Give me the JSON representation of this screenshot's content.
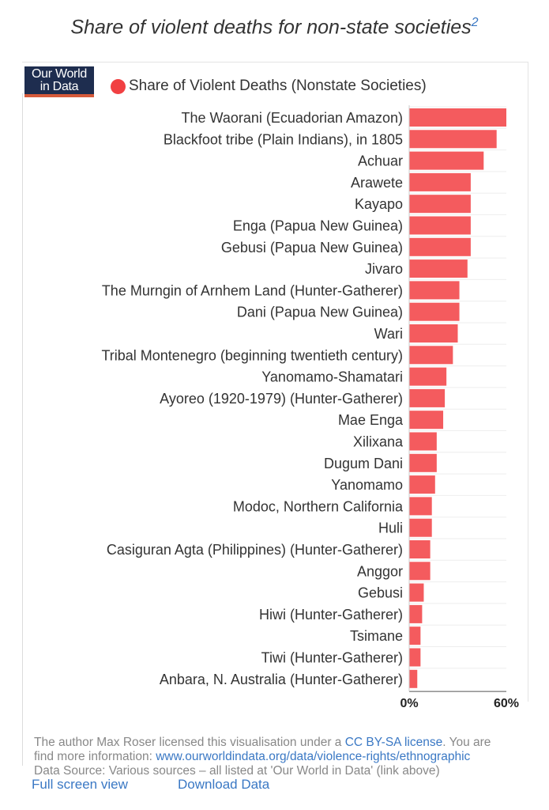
{
  "header": {
    "title": "Share of violent deaths for non-state societies",
    "footnote_ref": "2"
  },
  "logo": {
    "line1": "Our World",
    "line2": "in Data"
  },
  "colors": {
    "bar": "#f45b5e",
    "legend_dot": "#f14042",
    "link": "#3a78c4",
    "logo_bg": "#1e2d4f",
    "logo_accent": "#d65a3a"
  },
  "chart_data": {
    "type": "bar",
    "orientation": "horizontal",
    "series": [
      {
        "name": "Share of Violent Deaths (Nonstate Societies)",
        "values": [
          60,
          54,
          46,
          38,
          38,
          38,
          38,
          36,
          31,
          31,
          30,
          27,
          23,
          22,
          21,
          17,
          17,
          16,
          14,
          14,
          13,
          13,
          9,
          8,
          7,
          7,
          5
        ]
      }
    ],
    "categories": [
      "The Waorani (Ecuadorian Amazon)",
      "Blackfoot tribe (Plain Indians), in 1805",
      "Achuar",
      "Arawete",
      "Kayapo",
      "Enga (Papua New Guinea)",
      "Gebusi (Papua New Guinea)",
      "Jivaro",
      "The Murngin of Arnhem Land (Hunter-Gatherer)",
      "Dani (Papua New Guinea)",
      "Wari",
      "Tribal Montenegro (beginning twentieth century)",
      "Yanomamo-Shamatari",
      "Ayoreo (1920-1979) (Hunter-Gatherer)",
      "Mae Enga",
      "Xilixana",
      "Dugum Dani",
      "Yanomamo",
      "Modoc, Northern California",
      "Huli",
      "Casiguran Agta (Philippines) (Hunter-Gatherer)",
      "Anggor",
      "Gebusi",
      "Hiwi (Hunter-Gatherer)",
      "Tsimane",
      "Tiwi (Hunter-Gatherer)",
      "Anbara, N. Australia (Hunter-Gatherer)"
    ],
    "xlim": [
      0,
      60
    ],
    "x_ticks": [
      "0%",
      "60%"
    ],
    "legend_position": "top-left",
    "grid": true
  },
  "footer": {
    "license_text": "The author Max Roser licensed this visualisation under a ",
    "license_link": "CC BY-SA license",
    "license_text_after": ". You are",
    "more_info_text": "find more information: ",
    "more_info_link": "www.ourworldindata.org/data/violence-rights/ethnographic",
    "source_text": "Data Source: Various sources – all listed at 'Our World in Data' (link above)",
    "full_screen_label": "Full screen view",
    "download_label": "Download Data"
  }
}
